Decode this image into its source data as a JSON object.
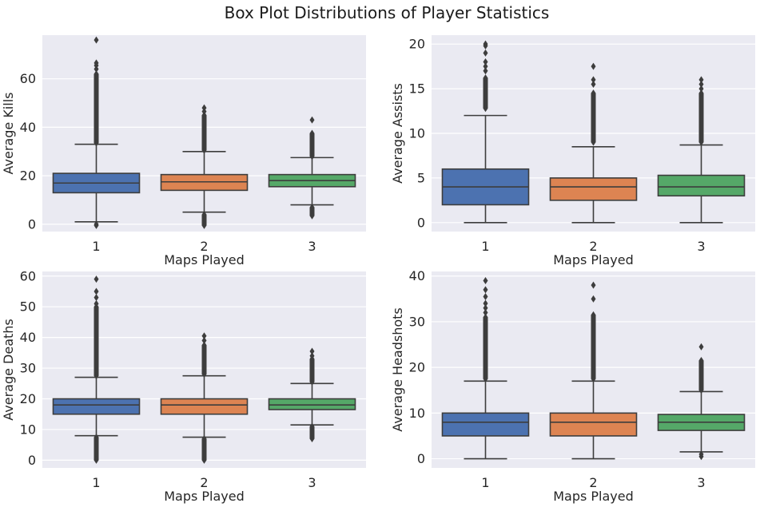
{
  "title": "Box Plot Distributions of Player Statistics",
  "colors": {
    "background": "#ffffff",
    "panel": "#eaeaf2",
    "grid": "#ffffff",
    "lines": "#3d3d3d",
    "series": [
      "#4c72b0",
      "#dd8452",
      "#55a868"
    ]
  },
  "chart_data": [
    {
      "type": "box",
      "xlabel": "Maps Played",
      "ylabel": "Average Kills",
      "categories": [
        "1",
        "2",
        "3"
      ],
      "ylim": [
        -3,
        78
      ],
      "yticks": [
        0,
        20,
        40,
        60
      ],
      "grid": true,
      "boxes": [
        {
          "whisker_low": 1,
          "q1": 13,
          "median": 17,
          "q3": 21,
          "whisker_high": 33,
          "outliers_low": [
            0,
            -0.5
          ],
          "outliers_high_range": [
            33.5,
            62
          ],
          "outliers_high": [
            64,
            65.5,
            66.5,
            76
          ]
        },
        {
          "whisker_low": 5,
          "q1": 14,
          "median": 17.5,
          "q3": 20.5,
          "whisker_high": 30,
          "outliers_low_range": [
            -0.5,
            4
          ],
          "outliers_low": [],
          "outliers_high_range": [
            30.5,
            45
          ],
          "outliers_high": [
            46.5,
            48
          ]
        },
        {
          "whisker_low": 8,
          "q1": 15.5,
          "median": 18,
          "q3": 20.5,
          "whisker_high": 27.5,
          "outliers_low_range": [
            3.5,
            7
          ],
          "outliers_low": [],
          "outliers_high_range": [
            28,
            37.5
          ],
          "outliers_high": [
            43
          ]
        }
      ]
    },
    {
      "type": "box",
      "xlabel": "Maps Played",
      "ylabel": "Average Assists",
      "categories": [
        "1",
        "2",
        "3"
      ],
      "ylim": [
        -1,
        21
      ],
      "yticks": [
        0,
        5,
        10,
        15,
        20
      ],
      "grid": true,
      "boxes": [
        {
          "whisker_low": 0,
          "q1": 2,
          "median": 4,
          "q3": 6,
          "whisker_high": 12,
          "outliers_low": [],
          "outliers_high_range": [
            12.8,
            16.2
          ],
          "outliers_high": [
            17,
            17.5,
            18,
            19,
            19.8,
            20
          ]
        },
        {
          "whisker_low": 0,
          "q1": 2.5,
          "median": 4,
          "q3": 5,
          "whisker_high": 8.5,
          "outliers_low": [],
          "outliers_high_range": [
            9,
            14.5
          ],
          "outliers_high": [
            15.5,
            16,
            17.5
          ]
        },
        {
          "whisker_low": 0,
          "q1": 3,
          "median": 4,
          "q3": 5.3,
          "whisker_high": 8.7,
          "outliers_low": [],
          "outliers_high_range": [
            9,
            14.5
          ],
          "outliers_high": [
            15,
            15.5,
            16
          ]
        }
      ]
    },
    {
      "type": "box",
      "xlabel": "Maps Played",
      "ylabel": "Average Deaths",
      "categories": [
        "1",
        "2",
        "3"
      ],
      "ylim": [
        -2.5,
        61.5
      ],
      "yticks": [
        0,
        10,
        20,
        30,
        40,
        50,
        60
      ],
      "grid": true,
      "boxes": [
        {
          "whisker_low": 8,
          "q1": 15,
          "median": 18,
          "q3": 20,
          "whisker_high": 27,
          "outliers_low_range": [
            0,
            7.5
          ],
          "outliers_low": [],
          "outliers_high_range": [
            27.5,
            50
          ],
          "outliers_high": [
            51,
            53,
            55,
            59
          ]
        },
        {
          "whisker_low": 7.5,
          "q1": 15,
          "median": 18,
          "q3": 20,
          "whisker_high": 27.5,
          "outliers_low_range": [
            0,
            7
          ],
          "outliers_low": [],
          "outliers_high_range": [
            28,
            37.5
          ],
          "outliers_high": [
            39,
            40.5
          ]
        },
        {
          "whisker_low": 11.5,
          "q1": 16.5,
          "median": 18,
          "q3": 20,
          "whisker_high": 25,
          "outliers_low_range": [
            7,
            11
          ],
          "outliers_low": [],
          "outliers_high_range": [
            25.5,
            33
          ],
          "outliers_high": [
            34,
            35.5
          ]
        }
      ]
    },
    {
      "type": "box",
      "xlabel": "Maps Played",
      "ylabel": "Average Headshots",
      "categories": [
        "1",
        "2",
        "3"
      ],
      "ylim": [
        -2,
        41
      ],
      "yticks": [
        0,
        10,
        20,
        30,
        40
      ],
      "grid": true,
      "boxes": [
        {
          "whisker_low": 0,
          "q1": 5,
          "median": 8,
          "q3": 10,
          "whisker_high": 17,
          "outliers_low": [],
          "outliers_high_range": [
            17.5,
            31
          ],
          "outliers_high": [
            32,
            33,
            34,
            35.5,
            37,
            39
          ]
        },
        {
          "whisker_low": 0,
          "q1": 5,
          "median": 8,
          "q3": 10,
          "whisker_high": 17,
          "outliers_low": [],
          "outliers_high_range": [
            17.5,
            31.5
          ],
          "outliers_high": [
            35,
            38
          ]
        },
        {
          "whisker_low": 1.5,
          "q1": 6.2,
          "median": 8,
          "q3": 9.7,
          "whisker_high": 14.7,
          "outliers_low": [
            0.5,
            1
          ],
          "outliers_high_range": [
            15,
            21.5
          ],
          "outliers_high": [
            24.5
          ]
        }
      ]
    }
  ]
}
